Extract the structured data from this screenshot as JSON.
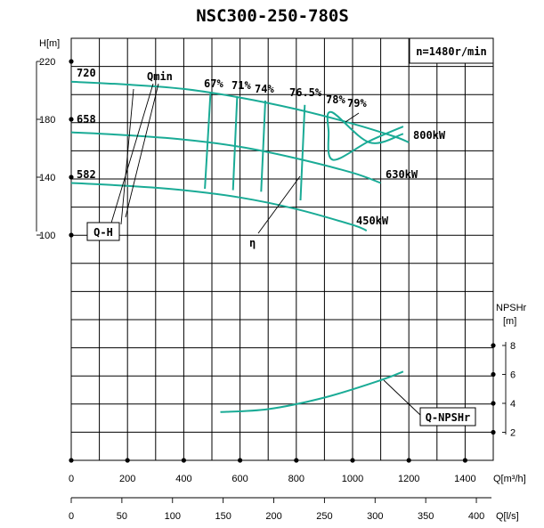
{
  "chart_data": {
    "type": "line",
    "title": "NSC300-250-780S",
    "speed_label": "n=1480r/min",
    "x_axis": {
      "label": "Q[m³/h]",
      "ticks": [
        "0",
        "200",
        "400",
        "600",
        "800",
        "1000",
        "1200",
        "1400"
      ],
      "range": [
        0,
        1500
      ]
    },
    "x2_axis": {
      "label": "Q[l/s]",
      "ticks": [
        "0",
        "50",
        "100",
        "150",
        "200",
        "250",
        "300",
        "350",
        "400"
      ]
    },
    "y_axis_head": {
      "label": "H[m]",
      "ticks": [
        "220",
        "180",
        "140",
        "100"
      ],
      "range": [
        100,
        230
      ]
    },
    "y_axis_npsh": {
      "label_line1": "NPSHr",
      "label_line2": "[m]",
      "ticks": [
        "8",
        "6",
        "4",
        "2"
      ],
      "range": [
        2,
        8
      ]
    },
    "diameter_labels": [
      "720",
      "658",
      "582"
    ],
    "head_curves": [
      {
        "name": "720",
        "x": [
          0,
          200,
          400,
          600,
          800,
          1000,
          1150,
          1200
        ],
        "y": [
          206,
          204,
          201,
          195,
          187,
          177,
          168,
          164
        ]
      },
      {
        "name": "658",
        "x": [
          0,
          200,
          400,
          600,
          800,
          1000,
          1100
        ],
        "y": [
          171,
          169,
          166,
          161,
          153,
          143,
          136
        ]
      },
      {
        "name": "582",
        "x": [
          0,
          200,
          400,
          600,
          800,
          1000,
          1050
        ],
        "y": [
          136,
          134,
          131,
          126,
          118,
          107,
          103
        ]
      }
    ],
    "power_labels": [
      "800kW",
      "630kW",
      "450kW"
    ],
    "efficiency_labels": [
      "67%",
      "71%",
      "74%",
      "76.5%",
      "78%",
      "79%"
    ],
    "efficiency_lines": [
      {
        "label": "67%",
        "x": [
          495,
          475
        ],
        "y": [
          198,
          132
        ]
      },
      {
        "label": "71%",
        "x": [
          590,
          575
        ],
        "y": [
          196,
          131
        ]
      },
      {
        "label": "74%",
        "x": [
          690,
          675
        ],
        "y": [
          193,
          130
        ]
      },
      {
        "label": "76.5%",
        "x": [
          830,
          815
        ],
        "y": [
          190,
          124
        ]
      }
    ],
    "efficiency_79_loop": {
      "x": [
        1180,
        1060,
        925,
        915,
        930,
        1060,
        1180
      ],
      "y": [
        170,
        164,
        185,
        171,
        152,
        165,
        175
      ]
    },
    "npsh_curve": {
      "name": "Q-NPSHr",
      "x": [
        530,
        700,
        900,
        1100,
        1180
      ],
      "y": [
        3.4,
        3.6,
        4.4,
        5.6,
        6.2
      ]
    },
    "annotations": [
      "Qmin",
      "Q-H",
      "η",
      "Q-NPSHr"
    ]
  },
  "colors": {
    "curve": "#1aab96",
    "grid": "#000000"
  }
}
